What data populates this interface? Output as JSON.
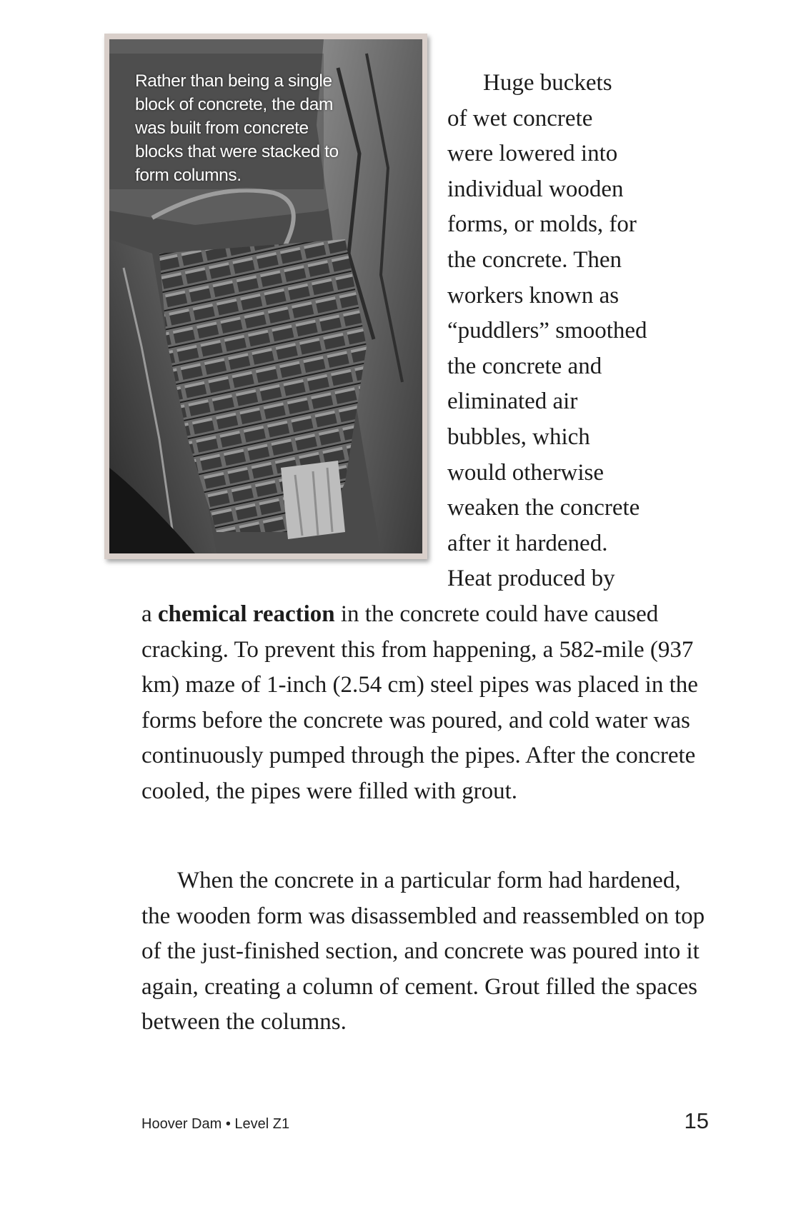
{
  "figure": {
    "caption": "Rather than being a single block of concrete, the dam was built from concrete blocks that were stacked to form columns."
  },
  "body": {
    "para1_narrow_lines": [
      "Huge buckets",
      "of wet concrete",
      "were lowered into",
      "individual wooden",
      "forms, or molds, for",
      "the concrete. Then",
      "workers known as",
      "“puddlers” smoothed",
      "the concrete and",
      "eliminated air",
      "bubbles, which",
      "would otherwise",
      "weaken the concrete",
      "after it hardened.",
      "Heat produced by"
    ],
    "para1_wide": {
      "prefix": "a ",
      "bold_term": "chemical reaction",
      "rest": " in the concrete could have caused cracking. To prevent this from happening, a 582-mile (937 km) maze of 1-inch (2.54 cm) steel pipes was placed in the forms before the concrete was poured, and cold water was continuously pumped through the pipes. After the concrete cooled, the pipes were filled with grout."
    },
    "para2": "When the concrete in a particular form had hardened, the wooden form was disassembled and reassembled on top of the just-finished section, and concrete was poured into it again, creating a column of cement. Grout filled the spaces between the columns."
  },
  "footer": {
    "book_title": "Hoover Dam • Level Z1",
    "page_number": "15"
  }
}
